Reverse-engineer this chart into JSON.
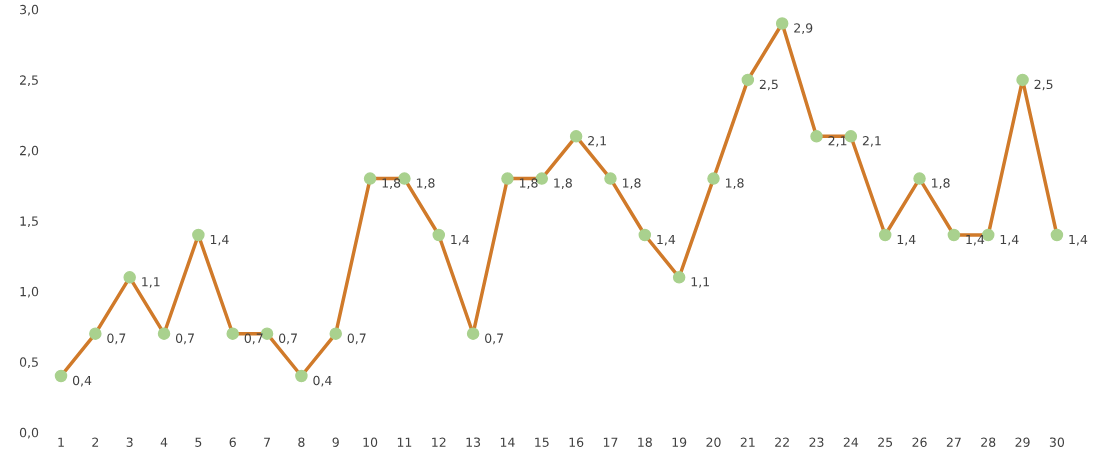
{
  "chart_data": {
    "type": "line",
    "categories": [
      "1",
      "2",
      "3",
      "4",
      "5",
      "6",
      "7",
      "8",
      "9",
      "10",
      "11",
      "12",
      "13",
      "14",
      "15",
      "16",
      "17",
      "18",
      "19",
      "20",
      "21",
      "22",
      "23",
      "24",
      "25",
      "26",
      "27",
      "28",
      "29",
      "30"
    ],
    "series": [
      {
        "color": "#d07a2a",
        "values": [
          0.4,
          0.7,
          1.1,
          0.7,
          1.4,
          0.7,
          0.7,
          0.4,
          0.7,
          1.8,
          1.8,
          1.4,
          0.7,
          1.8,
          1.8,
          2.1,
          1.8,
          1.4,
          1.1,
          1.8,
          2.5,
          2.9,
          2.1,
          2.1,
          1.4,
          1.8,
          1.4,
          1.4,
          2.5,
          1.4
        ],
        "value_labels": [
          "0,4",
          "0,7",
          "1,1",
          "0,7",
          "1,4",
          "0,7",
          "0,7",
          "0,4",
          "0,7",
          "1,8",
          "1,8",
          "1,4",
          "0,7",
          "1,8",
          "1,8",
          "2,1",
          "1,8",
          "1,4",
          "1,1",
          "1,8",
          "2,5",
          "2,9",
          "2,1",
          "2,1",
          "1,4",
          "1,8",
          "1,4",
          "1,4",
          "2,5",
          "1,4"
        ]
      }
    ],
    "marker": "circle",
    "line_style": "solid",
    "ylim": [
      0,
      3.0
    ],
    "yticks": [
      {
        "value": 0,
        "label": "0,0"
      },
      {
        "value": 0.5,
        "label": "0,5"
      },
      {
        "value": 1.0,
        "label": "1,0"
      },
      {
        "value": 1.5,
        "label": "1,5"
      },
      {
        "value": 2.0,
        "label": "2,0"
      },
      {
        "value": 2.5,
        "label": "2,5"
      },
      {
        "value": 3.0,
        "label": "3,0"
      }
    ],
    "grid": false,
    "legend": false
  }
}
